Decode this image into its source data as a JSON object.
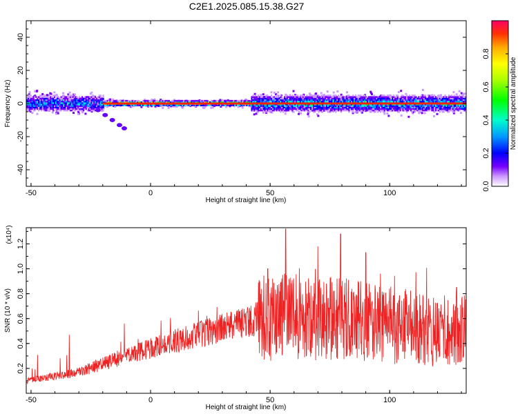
{
  "title": "C2E1.2025.085.15.38.G27",
  "chart_data": [
    {
      "type": "heatmap",
      "xlabel": "Height of straight line (km)",
      "ylabel": "Frequency (Hz)",
      "xlim": [
        -52,
        132
      ],
      "ylim": [
        -50,
        50
      ],
      "xticks": [
        -50,
        0,
        50,
        100
      ],
      "yticks": [
        -40,
        -20,
        0,
        20,
        40
      ],
      "grid": false,
      "colorbar": {
        "label": "Normalized spectral amplitude",
        "range": [
          0,
          1
        ],
        "ticks": [
          "0.0",
          "0.2",
          "0.4",
          "0.6",
          "0.8"
        ],
        "colors": [
          "#ffffff",
          "#cc99ff",
          "#7700ff",
          "#0000ff",
          "#0099ff",
          "#00ffcc",
          "#00ff00",
          "#aaff00",
          "#ffff00",
          "#ffaa00",
          "#ff3300",
          "#ff0066"
        ]
      },
      "bands": [
        {
          "x0": -52,
          "x1": -20,
          "center": 0,
          "halfwidth": 6,
          "peak": 0.45
        },
        {
          "x0": -20,
          "x1": 42,
          "center": 0,
          "halfwidth": 2,
          "peak": 0.95
        },
        {
          "x0": 42,
          "x1": 132,
          "center": 0,
          "halfwidth": 6,
          "peak": 0.55
        }
      ],
      "trail": [
        {
          "x": -22,
          "y": -4
        },
        {
          "x": -19,
          "y": -7
        },
        {
          "x": -16,
          "y": -10
        },
        {
          "x": -13,
          "y": -13
        },
        {
          "x": -11,
          "y": -15
        }
      ]
    },
    {
      "type": "line",
      "xlabel": "Height of straight line (km)",
      "ylabel": "SNR (10 * v/v)",
      "y_multiplier": "(x10⁴)",
      "xlim": [
        -52,
        132
      ],
      "ylim": [
        0,
        1.33
      ],
      "xticks": [
        -50,
        0,
        50,
        100
      ],
      "yticks": [
        "0.2",
        "0.4",
        "0.6",
        "0.8",
        "1.0",
        "1.2"
      ],
      "grid": false,
      "color": "#ee2222",
      "trend": [
        {
          "x": -52,
          "y": 0.1
        },
        {
          "x": -30,
          "y": 0.17
        },
        {
          "x": -10,
          "y": 0.3
        },
        {
          "x": 10,
          "y": 0.42
        },
        {
          "x": 30,
          "y": 0.52
        },
        {
          "x": 45,
          "y": 0.6
        },
        {
          "x": 55,
          "y": 0.62
        },
        {
          "x": 80,
          "y": 0.6
        },
        {
          "x": 100,
          "y": 0.55
        },
        {
          "x": 120,
          "y": 0.5
        },
        {
          "x": 132,
          "y": 0.52
        }
      ],
      "peaks": [
        {
          "x": 56.5,
          "y": 1.32
        },
        {
          "x": 49,
          "y": 1.0
        },
        {
          "x": 79.5,
          "y": 1.28
        },
        {
          "x": 70,
          "y": 1.18
        },
        {
          "x": 90,
          "y": 1.13
        },
        {
          "x": 128,
          "y": 0.85
        },
        {
          "x": -34,
          "y": 0.47
        },
        {
          "x": -11,
          "y": 0.56
        }
      ]
    }
  ]
}
